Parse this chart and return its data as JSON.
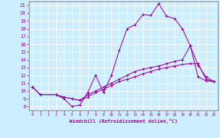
{
  "xlabel": "Windchill (Refroidissement éolien,°C)",
  "bg_color": "#cceeff",
  "grid_color": "#ffffff",
  "line_color": "#990099",
  "x_ticks": [
    0,
    1,
    2,
    3,
    4,
    5,
    6,
    7,
    8,
    9,
    10,
    11,
    12,
    13,
    14,
    15,
    16,
    17,
    18,
    19,
    20,
    21,
    22,
    23
  ],
  "y_ticks": [
    8,
    9,
    10,
    11,
    12,
    13,
    14,
    15,
    16,
    17,
    18,
    19,
    20,
    21
  ],
  "xlim": [
    -0.5,
    23.5
  ],
  "ylim": [
    7.5,
    21.5
  ],
  "lines": [
    {
      "x": [
        0,
        1,
        3,
        4,
        5,
        6,
        7,
        8,
        9,
        10,
        11,
        12,
        13,
        14,
        15,
        16,
        17,
        18,
        19,
        20,
        21,
        22,
        23
      ],
      "y": [
        10.5,
        9.5,
        9.5,
        9.0,
        8.0,
        8.2,
        9.8,
        12.0,
        9.8,
        12.0,
        15.2,
        18.0,
        18.5,
        19.8,
        19.7,
        21.2,
        19.6,
        19.3,
        18.0,
        15.8,
        13.3,
        11.8,
        11.2
      ]
    },
    {
      "x": [
        0,
        1,
        3,
        4,
        5,
        6,
        7,
        8,
        9,
        10,
        11,
        12,
        13,
        14,
        15,
        16,
        17,
        18,
        19,
        20,
        21,
        22,
        23
      ],
      "y": [
        10.5,
        9.5,
        9.5,
        9.2,
        9.0,
        8.8,
        9.2,
        9.8,
        10.2,
        10.7,
        11.2,
        11.5,
        11.8,
        12.2,
        12.5,
        12.8,
        13.0,
        13.2,
        13.4,
        13.5,
        13.5,
        11.5,
        11.2
      ]
    },
    {
      "x": [
        0,
        1,
        3,
        4,
        5,
        6,
        7,
        8,
        9,
        10,
        11,
        12,
        13,
        14,
        15,
        16,
        17,
        18,
        19,
        20,
        21,
        22,
        23
      ],
      "y": [
        10.5,
        9.5,
        9.5,
        9.2,
        9.0,
        8.8,
        9.5,
        10.0,
        10.5,
        11.0,
        11.5,
        12.0,
        12.5,
        12.8,
        13.0,
        13.2,
        13.5,
        13.8,
        14.0,
        15.8,
        11.8,
        11.3,
        11.2
      ]
    }
  ]
}
